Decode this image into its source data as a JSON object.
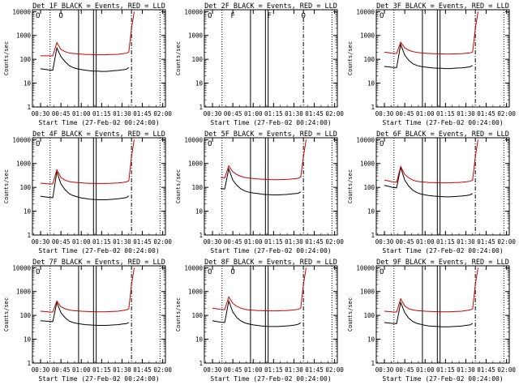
{
  "chart_data": [
    {
      "type": "line",
      "title": "Det 1F BLACK = Events, RED = LLD",
      "xlabel": "Start Time (27-Feb-02 00:24:00)",
      "ylabel": "Counts/sec",
      "markers": [
        "O",
        "O"
      ],
      "series": [
        {
          "color": "#000000",
          "x": [
            30,
            33,
            36,
            39,
            42,
            45,
            48,
            51,
            54,
            57,
            60,
            63,
            66,
            69,
            72,
            75,
            78,
            81,
            84,
            87,
            90,
            93,
            95
          ],
          "values": [
            40,
            38,
            36,
            35,
            300,
            130,
            80,
            55,
            45,
            40,
            37,
            35,
            33,
            32,
            32,
            31,
            31,
            32,
            33,
            34,
            36,
            38,
            45
          ]
        },
        {
          "color": "#cc0000",
          "x": [
            30,
            33,
            36,
            39,
            42,
            45,
            48,
            51,
            54,
            57,
            60,
            63,
            66,
            69,
            72,
            75,
            78,
            81,
            84,
            87,
            90,
            93,
            95,
            97,
            99
          ],
          "values": [
            140,
            140,
            140,
            140,
            500,
            260,
            210,
            185,
            175,
            170,
            165,
            160,
            158,
            156,
            155,
            155,
            155,
            158,
            160,
            162,
            170,
            180,
            200,
            2000,
            10000
          ]
        }
      ]
    },
    {
      "type": "line",
      "title": "Det 2F BLACK = Events, RED = LLD",
      "xlabel": "Start Time (27-Feb-02 00:24:00)",
      "ylabel": "Counts/sec",
      "markers": [
        "O",
        "F",
        "F",
        "O"
      ],
      "series": []
    },
    {
      "type": "line",
      "title": "Det 3F BLACK = Events, RED = LLD",
      "xlabel": "Start Time (27-Feb-02 00:24:00)",
      "ylabel": "Counts/sec",
      "markers": [
        "O"
      ],
      "series": [
        {
          "color": "#000000",
          "x": [
            30,
            33,
            36,
            39,
            42,
            45,
            48,
            51,
            54,
            57,
            60,
            63,
            66,
            69,
            72,
            75,
            78,
            81,
            84,
            87,
            90,
            93,
            95
          ],
          "values": [
            50,
            48,
            46,
            45,
            420,
            150,
            90,
            65,
            55,
            50,
            47,
            45,
            43,
            42,
            42,
            41,
            41,
            42,
            43,
            44,
            46,
            48,
            55
          ]
        },
        {
          "color": "#cc0000",
          "x": [
            30,
            33,
            36,
            39,
            42,
            45,
            48,
            51,
            54,
            57,
            60,
            63,
            66,
            69,
            72,
            75,
            78,
            81,
            84,
            87,
            90,
            93,
            95,
            97,
            99
          ],
          "values": [
            200,
            190,
            180,
            175,
            520,
            300,
            240,
            210,
            195,
            185,
            180,
            175,
            172,
            170,
            168,
            167,
            167,
            168,
            170,
            172,
            178,
            185,
            200,
            2000,
            10000
          ]
        }
      ]
    },
    {
      "type": "line",
      "title": "Det 4F BLACK = Events, RED = LLD",
      "xlabel": "Start Time (27-Feb-02 00:24:00)",
      "ylabel": "Counts/sec",
      "markers": [
        "O"
      ],
      "series": [
        {
          "color": "#000000",
          "x": [
            30,
            33,
            36,
            39,
            42,
            45,
            48,
            51,
            54,
            57,
            60,
            63,
            66,
            69,
            72,
            75,
            78,
            81,
            84,
            87,
            90,
            93,
            95
          ],
          "values": [
            42,
            40,
            38,
            37,
            450,
            140,
            80,
            55,
            45,
            40,
            36,
            34,
            32,
            31,
            30,
            30,
            30,
            31,
            32,
            33,
            35,
            37,
            44
          ]
        },
        {
          "color": "#cc0000",
          "x": [
            30,
            33,
            36,
            39,
            42,
            45,
            48,
            51,
            54,
            57,
            60,
            63,
            66,
            69,
            72,
            75,
            78,
            81,
            84,
            87,
            90,
            93,
            95,
            97,
            99
          ],
          "values": [
            150,
            145,
            140,
            140,
            550,
            260,
            200,
            175,
            165,
            160,
            155,
            150,
            148,
            146,
            145,
            145,
            145,
            148,
            150,
            152,
            158,
            168,
            185,
            2000,
            10000
          ]
        }
      ]
    },
    {
      "type": "line",
      "title": "Det 5F BLACK = Events, RED = LLD",
      "xlabel": "Start Time (27-Feb-02 00:24:00)",
      "ylabel": "Counts/sec",
      "markers": [
        "O"
      ],
      "series": [
        {
          "color": "#000000",
          "x": [
            36,
            39,
            42,
            45,
            48,
            51,
            54,
            57,
            60,
            63,
            66,
            69,
            72,
            75,
            78,
            81,
            84,
            87,
            90,
            93,
            95
          ],
          "values": [
            90,
            85,
            600,
            200,
            120,
            85,
            70,
            62,
            58,
            55,
            52,
            50,
            49,
            48,
            48,
            49,
            50,
            52,
            54,
            56,
            65
          ]
        },
        {
          "color": "#cc0000",
          "x": [
            36,
            39,
            42,
            45,
            48,
            51,
            54,
            57,
            60,
            63,
            66,
            69,
            72,
            75,
            78,
            81,
            84,
            87,
            90,
            93,
            95,
            97,
            99
          ],
          "values": [
            260,
            250,
            800,
            450,
            340,
            290,
            260,
            245,
            235,
            225,
            220,
            216,
            212,
            210,
            210,
            212,
            215,
            220,
            228,
            240,
            270,
            2000,
            10000
          ]
        }
      ]
    },
    {
      "type": "line",
      "title": "Det 6F BLACK = Events, RED = LLD",
      "xlabel": "Start Time (27-Feb-02 00:24:00)",
      "ylabel": "Counts/sec",
      "markers": [
        "O"
      ],
      "series": [
        {
          "color": "#000000",
          "x": [
            30,
            33,
            36,
            39,
            42,
            45,
            48,
            51,
            54,
            57,
            60,
            63,
            66,
            69,
            72,
            75,
            78,
            81,
            84,
            87,
            90,
            93,
            95
          ],
          "values": [
            120,
            110,
            100,
            95,
            700,
            200,
            110,
            75,
            60,
            52,
            48,
            45,
            43,
            42,
            41,
            40,
            40,
            41,
            42,
            43,
            45,
            48,
            55
          ]
        },
        {
          "color": "#cc0000",
          "x": [
            30,
            33,
            36,
            39,
            42,
            45,
            48,
            51,
            54,
            57,
            60,
            63,
            66,
            69,
            72,
            75,
            78,
            81,
            84,
            87,
            90,
            93,
            95,
            97,
            99
          ],
          "values": [
            200,
            185,
            170,
            165,
            750,
            350,
            250,
            200,
            180,
            170,
            165,
            160,
            158,
            156,
            155,
            155,
            155,
            158,
            160,
            163,
            170,
            180,
            200,
            2000,
            10000
          ]
        }
      ]
    },
    {
      "type": "line",
      "title": "Det 7F BLACK = Events, RED = LLD",
      "xlabel": "Start Time (27-Feb-02 00:24:00)",
      "ylabel": "Counts/sec",
      "markers": [
        "O"
      ],
      "series": [
        {
          "color": "#000000",
          "x": [
            30,
            33,
            36,
            39,
            42,
            45,
            48,
            51,
            54,
            57,
            60,
            63,
            66,
            69,
            72,
            75,
            78,
            81,
            84,
            87,
            90,
            93,
            95
          ],
          "values": [
            60,
            58,
            56,
            55,
            350,
            130,
            80,
            58,
            50,
            46,
            43,
            41,
            40,
            39,
            38,
            38,
            38,
            39,
            40,
            41,
            43,
            45,
            50
          ]
        },
        {
          "color": "#cc0000",
          "x": [
            30,
            33,
            36,
            39,
            42,
            45,
            48,
            51,
            54,
            57,
            60,
            63,
            66,
            69,
            72,
            75,
            78,
            81,
            84,
            87,
            90,
            93,
            95,
            97,
            99
          ],
          "values": [
            150,
            145,
            140,
            138,
            400,
            230,
            190,
            170,
            160,
            155,
            150,
            147,
            145,
            143,
            142,
            142,
            142,
            145,
            148,
            150,
            158,
            168,
            185,
            2000,
            10000
          ]
        }
      ]
    },
    {
      "type": "line",
      "title": "Det 8F BLACK = Events, RED = LLD",
      "xlabel": "Start Time (27-Feb-02 00:24:00)",
      "ylabel": "Counts/sec",
      "markers": [
        "O",
        "O"
      ],
      "series": [
        {
          "color": "#000000",
          "x": [
            30,
            33,
            36,
            39,
            42,
            45,
            48,
            51,
            54,
            57,
            60,
            63,
            66,
            69,
            72,
            75,
            78,
            81,
            84,
            87,
            90,
            93,
            95
          ],
          "values": [
            60,
            55,
            52,
            50,
            400,
            140,
            80,
            58,
            48,
            43,
            40,
            38,
            36,
            35,
            34,
            34,
            34,
            35,
            36,
            37,
            39,
            42,
            48
          ]
        },
        {
          "color": "#cc0000",
          "x": [
            30,
            33,
            36,
            39,
            42,
            45,
            48,
            51,
            54,
            57,
            60,
            63,
            66,
            69,
            72,
            75,
            78,
            81,
            84,
            87,
            90,
            93,
            95,
            97,
            99
          ],
          "values": [
            200,
            190,
            180,
            175,
            600,
            320,
            240,
            200,
            180,
            170,
            165,
            160,
            158,
            156,
            155,
            155,
            155,
            158,
            160,
            163,
            170,
            180,
            200,
            2000,
            10000
          ]
        }
      ]
    },
    {
      "type": "line",
      "title": "Det 9F BLACK = Events, RED = LLD",
      "xlabel": "Start Time (27-Feb-02 00:24:00)",
      "ylabel": "Counts/sec",
      "markers": [
        "O"
      ],
      "series": [
        {
          "color": "#000000",
          "x": [
            30,
            33,
            36,
            39,
            42,
            45,
            48,
            51,
            54,
            57,
            60,
            63,
            66,
            69,
            72,
            75,
            78,
            81,
            84,
            87,
            90,
            93,
            95
          ],
          "values": [
            50,
            48,
            46,
            45,
            350,
            130,
            75,
            55,
            46,
            42,
            38,
            36,
            35,
            34,
            33,
            33,
            33,
            34,
            35,
            36,
            38,
            40,
            46
          ]
        },
        {
          "color": "#cc0000",
          "x": [
            30,
            33,
            36,
            39,
            42,
            45,
            48,
            51,
            54,
            57,
            60,
            63,
            66,
            69,
            72,
            75,
            78,
            81,
            84,
            87,
            90,
            93,
            95,
            97,
            99
          ],
          "values": [
            150,
            145,
            140,
            138,
            500,
            250,
            190,
            170,
            160,
            155,
            150,
            147,
            145,
            143,
            142,
            142,
            142,
            145,
            148,
            150,
            158,
            168,
            185,
            2000,
            10000
          ]
        }
      ]
    }
  ],
  "axes": {
    "x_ticks": [
      {
        "x": 30,
        "label": "00:30"
      },
      {
        "x": 45,
        "label": "00:45"
      },
      {
        "x": 60,
        "label": "01:00"
      },
      {
        "x": 75,
        "label": "01:15"
      },
      {
        "x": 90,
        "label": "01:30"
      },
      {
        "x": 105,
        "label": "01:45"
      },
      {
        "x": 120,
        "label": "02:00"
      }
    ],
    "x_range": [
      24,
      122
    ],
    "y_ticks": [
      {
        "v": 1,
        "label": "1"
      },
      {
        "v": 10,
        "label": "10"
      },
      {
        "v": 100,
        "label": "100"
      },
      {
        "v": 1000,
        "label": "1000"
      },
      {
        "v": 10000,
        "label": "10000"
      }
    ],
    "y_range": [
      1,
      12000
    ],
    "y_scale": "log"
  }
}
